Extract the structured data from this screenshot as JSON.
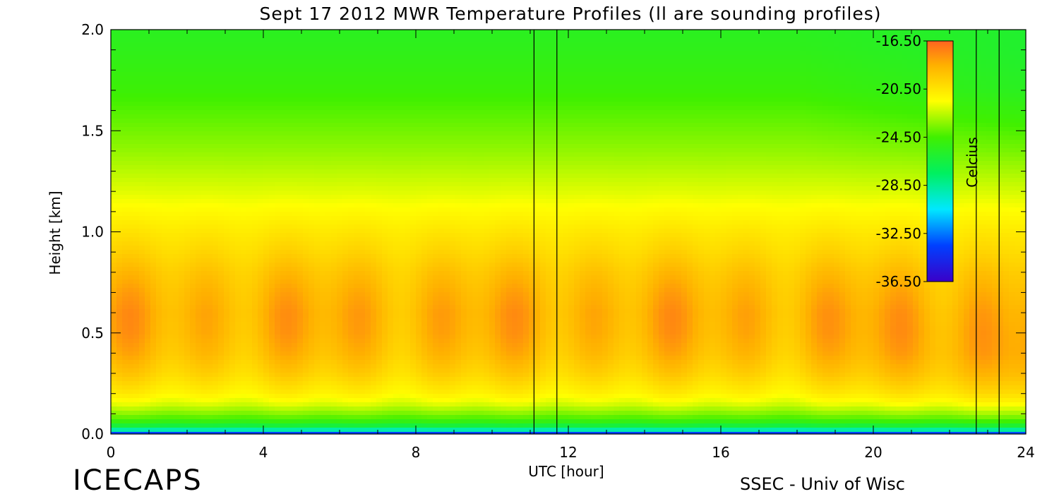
{
  "chart_data": {
    "type": "heatmap",
    "title": "Sept 17 2012 MWR Temperature Profiles (ll are sounding profiles)",
    "xlabel": "UTC [hour]",
    "ylabel": "Height [km]",
    "xlim": [
      0,
      24
    ],
    "ylim": [
      0,
      2
    ],
    "x_ticks": [
      "0",
      "4",
      "8",
      "12",
      "16",
      "20",
      "24"
    ],
    "y_ticks": [
      "0.0",
      "0.5",
      "1.0",
      "1.5",
      "2.0"
    ],
    "colorbar": {
      "label": "Celcius",
      "ticks": [
        "-16.50",
        "-20.50",
        "-24.50",
        "-28.50",
        "-32.50",
        "-36.50"
      ],
      "range": [
        -36.5,
        -16.5
      ],
      "placement": "top-right inside plot"
    },
    "sounding_profiles_utc": [
      11.1,
      11.7,
      22.7,
      23.3
    ],
    "profile": {
      "height_km": [
        0.0,
        0.02,
        0.04,
        0.07,
        0.1,
        0.15,
        0.2,
        0.3,
        0.4,
        0.5,
        0.6,
        0.7,
        0.8,
        0.9,
        1.0,
        1.1,
        1.2,
        1.3,
        1.4,
        1.5,
        1.6,
        1.7,
        1.8,
        1.9,
        2.0
      ],
      "temperature_c": [
        -33.5,
        -29.0,
        -26.5,
        -24.5,
        -23.5,
        -22.0,
        -21.0,
        -19.8,
        -19.0,
        -18.6,
        -18.5,
        -18.8,
        -19.3,
        -20.0,
        -20.6,
        -21.3,
        -22.0,
        -22.6,
        -23.2,
        -23.7,
        -24.2,
        -24.7,
        -25.0,
        -25.3,
        -25.5
      ]
    }
  },
  "branding": {
    "logo": "ICECAPS",
    "credit": "SSEC - Univ of Wisc"
  }
}
